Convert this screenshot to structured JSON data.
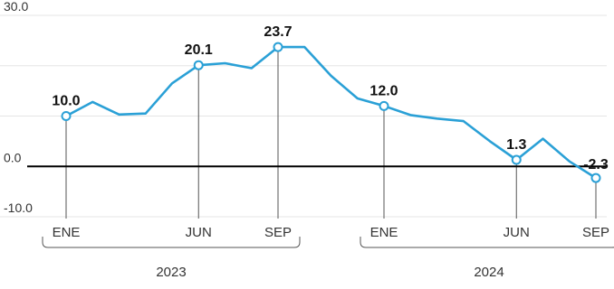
{
  "chart_data": {
    "type": "line",
    "title": "",
    "xlabel": "",
    "ylabel": "",
    "ylim": [
      -10,
      30
    ],
    "y_ticks": [
      {
        "value": 30,
        "label": "30.0"
      },
      {
        "value": 0,
        "label": "0.0"
      },
      {
        "value": -10,
        "label": "-10.0"
      }
    ],
    "grid": true,
    "colors": {
      "line": "#2aa0d6",
      "zero_line": "#000000",
      "grid": "#e5e5e5",
      "marker_fill": "#ffffff"
    },
    "x_index_range": [
      0,
      20
    ],
    "series": [
      {
        "values": [
          {
            "x": 0,
            "y": 10.0
          },
          {
            "x": 1,
            "y": 12.8
          },
          {
            "x": 2,
            "y": 10.3
          },
          {
            "x": 3,
            "y": 10.5
          },
          {
            "x": 4,
            "y": 16.5
          },
          {
            "x": 5,
            "y": 20.1
          },
          {
            "x": 6,
            "y": 20.5
          },
          {
            "x": 7,
            "y": 19.5
          },
          {
            "x": 8,
            "y": 23.7
          },
          {
            "x": 9,
            "y": 23.7
          },
          {
            "x": 10,
            "y": 18.0
          },
          {
            "x": 11,
            "y": 13.5
          },
          {
            "x": 12,
            "y": 12.0
          },
          {
            "x": 13,
            "y": 10.2
          },
          {
            "x": 14,
            "y": 9.5
          },
          {
            "x": 15,
            "y": 9.0
          },
          {
            "x": 16,
            "y": 5.0
          },
          {
            "x": 17,
            "y": 1.3
          },
          {
            "x": 18,
            "y": 5.5
          },
          {
            "x": 19,
            "y": 1.0
          },
          {
            "x": 20,
            "y": -2.3
          }
        ]
      }
    ],
    "highlighted_points": [
      {
        "x": 0,
        "y": 10.0,
        "label": "10.0"
      },
      {
        "x": 5,
        "y": 20.1,
        "label": "20.1"
      },
      {
        "x": 8,
        "y": 23.7,
        "label": "23.7"
      },
      {
        "x": 12,
        "y": 12.0,
        "label": "12.0"
      },
      {
        "x": 17,
        "y": 1.3,
        "label": "1.3"
      },
      {
        "x": 20,
        "y": -2.3,
        "label": "-2.3"
      }
    ],
    "x_ticks": [
      {
        "x": 0,
        "label": "ENE"
      },
      {
        "x": 5,
        "label": "JUN"
      },
      {
        "x": 8,
        "label": "SEP"
      },
      {
        "x": 12,
        "label": "ENE"
      },
      {
        "x": 17,
        "label": "JUN"
      },
      {
        "x": 20,
        "label": "SEP"
      }
    ],
    "x_groups": [
      {
        "label": "2023",
        "from": 0,
        "to": 8
      },
      {
        "label": "2024",
        "from": 12,
        "to": 20
      }
    ]
  }
}
